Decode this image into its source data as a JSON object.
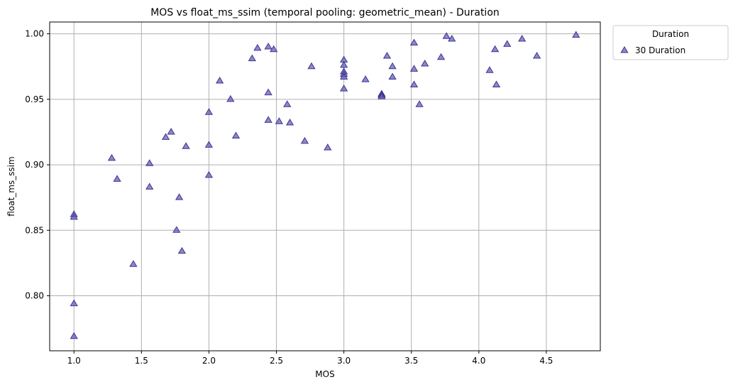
{
  "chart_data": {
    "type": "scatter",
    "title": "MOS vs float_ms_ssim (temporal pooling: geometric_mean) - Duration",
    "xlabel": "MOS",
    "ylabel": "float_ms_ssim",
    "xlim": [
      0.82,
      4.9
    ],
    "ylim": [
      0.758,
      1.009
    ],
    "xticks": [
      "1.0",
      "1.5",
      "2.0",
      "2.5",
      "3.0",
      "3.5",
      "4.0",
      "4.5"
    ],
    "xtick_values": [
      1.0,
      1.5,
      2.0,
      2.5,
      3.0,
      3.5,
      4.0,
      4.5
    ],
    "yticks": [
      "0.80",
      "0.85",
      "0.90",
      "0.95",
      "1.00"
    ],
    "ytick_values": [
      0.8,
      0.85,
      0.9,
      0.95,
      1.0
    ],
    "grid": true,
    "legend": {
      "title": "Duration",
      "placement": "outside-top-right",
      "entries": [
        "30 Duration"
      ]
    },
    "series": [
      {
        "name": "30 Duration",
        "color": "#5b55b4",
        "marker": "triangle",
        "points": [
          [
            1.0,
            0.862
          ],
          [
            1.0,
            0.86
          ],
          [
            1.0,
            0.794
          ],
          [
            1.0,
            0.769
          ],
          [
            1.28,
            0.905
          ],
          [
            1.32,
            0.889
          ],
          [
            1.44,
            0.824
          ],
          [
            1.56,
            0.901
          ],
          [
            1.56,
            0.883
          ],
          [
            1.68,
            0.921
          ],
          [
            1.72,
            0.925
          ],
          [
            1.76,
            0.85
          ],
          [
            1.78,
            0.875
          ],
          [
            1.8,
            0.834
          ],
          [
            1.83,
            0.914
          ],
          [
            2.0,
            0.94
          ],
          [
            2.0,
            0.915
          ],
          [
            2.0,
            0.892
          ],
          [
            2.08,
            0.964
          ],
          [
            2.16,
            0.95
          ],
          [
            2.2,
            0.922
          ],
          [
            2.32,
            0.981
          ],
          [
            2.36,
            0.989
          ],
          [
            2.44,
            0.99
          ],
          [
            2.44,
            0.955
          ],
          [
            2.44,
            0.934
          ],
          [
            2.48,
            0.988
          ],
          [
            2.52,
            0.933
          ],
          [
            2.58,
            0.946
          ],
          [
            2.6,
            0.932
          ],
          [
            2.71,
            0.918
          ],
          [
            2.76,
            0.975
          ],
          [
            2.88,
            0.913
          ],
          [
            3.0,
            0.98
          ],
          [
            3.0,
            0.976
          ],
          [
            3.0,
            0.971
          ],
          [
            3.0,
            0.969
          ],
          [
            3.0,
            0.967
          ],
          [
            3.0,
            0.958
          ],
          [
            3.16,
            0.965
          ],
          [
            3.28,
            0.954
          ],
          [
            3.28,
            0.953
          ],
          [
            3.28,
            0.952
          ],
          [
            3.32,
            0.983
          ],
          [
            3.36,
            0.975
          ],
          [
            3.36,
            0.967
          ],
          [
            3.52,
            0.993
          ],
          [
            3.52,
            0.973
          ],
          [
            3.52,
            0.961
          ],
          [
            3.56,
            0.946
          ],
          [
            3.6,
            0.977
          ],
          [
            3.72,
            0.982
          ],
          [
            3.76,
            0.998
          ],
          [
            3.8,
            0.996
          ],
          [
            4.08,
            0.972
          ],
          [
            4.12,
            0.988
          ],
          [
            4.13,
            0.961
          ],
          [
            4.21,
            0.992
          ],
          [
            4.32,
            0.996
          ],
          [
            4.43,
            0.983
          ],
          [
            4.72,
            0.999
          ]
        ]
      }
    ]
  }
}
